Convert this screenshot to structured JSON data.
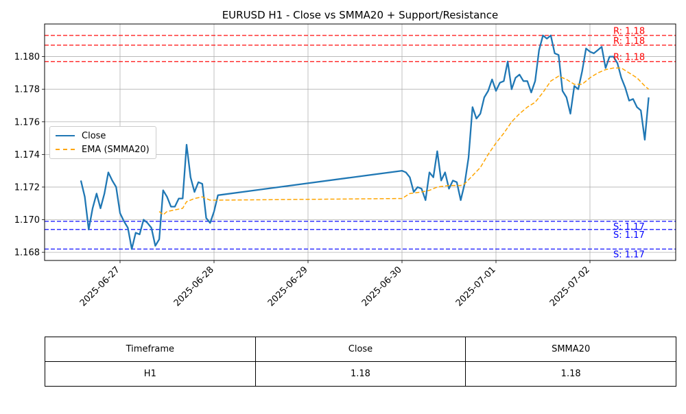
{
  "chart_data": {
    "type": "line",
    "title": "EURUSD H1 - Close vs SMMA20 + Support/Resistance",
    "xlabel": "",
    "ylabel": "",
    "x_ticks": [
      "2025-06-27",
      "2025-06-28",
      "2025-06-29",
      "2025-06-30",
      "2025-07-01",
      "2025-07-02"
    ],
    "y_ticks": [
      "1.168",
      "1.170",
      "1.172",
      "1.174",
      "1.176",
      "1.178",
      "1.180"
    ],
    "ylim": [
      1.1675,
      1.182
    ],
    "grid": true,
    "legend_position": "center-left",
    "series": [
      {
        "name": "Close",
        "color": "#1f77b4",
        "style": "solid",
        "points": [
          [
            "2025-06-26 14:00",
            1.1724
          ],
          [
            "2025-06-26 15:00",
            1.1714
          ],
          [
            "2025-06-26 16:00",
            1.1694
          ],
          [
            "2025-06-26 17:00",
            1.1707
          ],
          [
            "2025-06-26 18:00",
            1.1716
          ],
          [
            "2025-06-26 19:00",
            1.1707
          ],
          [
            "2025-06-26 20:00",
            1.1716
          ],
          [
            "2025-06-26 21:00",
            1.1729
          ],
          [
            "2025-06-26 22:00",
            1.1724
          ],
          [
            "2025-06-26 23:00",
            1.172
          ],
          [
            "2025-06-27 00:00",
            1.1704
          ],
          [
            "2025-06-27 01:00",
            1.1699
          ],
          [
            "2025-06-27 02:00",
            1.1695
          ],
          [
            "2025-06-27 03:00",
            1.1682
          ],
          [
            "2025-06-27 04:00",
            1.1692
          ],
          [
            "2025-06-27 05:00",
            1.1691
          ],
          [
            "2025-06-27 06:00",
            1.17
          ],
          [
            "2025-06-27 07:00",
            1.1698
          ],
          [
            "2025-06-27 08:00",
            1.1695
          ],
          [
            "2025-06-27 09:00",
            1.1684
          ],
          [
            "2025-06-27 10:00",
            1.1688
          ],
          [
            "2025-06-27 11:00",
            1.1718
          ],
          [
            "2025-06-27 12:00",
            1.1714
          ],
          [
            "2025-06-27 13:00",
            1.1708
          ],
          [
            "2025-06-27 14:00",
            1.1708
          ],
          [
            "2025-06-27 15:00",
            1.1713
          ],
          [
            "2025-06-27 16:00",
            1.1713
          ],
          [
            "2025-06-27 17:00",
            1.1746
          ],
          [
            "2025-06-27 18:00",
            1.1726
          ],
          [
            "2025-06-27 19:00",
            1.1717
          ],
          [
            "2025-06-27 20:00",
            1.1723
          ],
          [
            "2025-06-27 21:00",
            1.1722
          ],
          [
            "2025-06-27 22:00",
            1.1701
          ],
          [
            "2025-06-27 23:00",
            1.1698
          ],
          [
            "2025-06-28 00:00",
            1.1705
          ],
          [
            "2025-06-28 01:00",
            1.1715
          ],
          [
            "2025-06-30 00:00",
            1.173
          ],
          [
            "2025-06-30 01:00",
            1.1729
          ],
          [
            "2025-06-30 02:00",
            1.1726
          ],
          [
            "2025-06-30 03:00",
            1.1717
          ],
          [
            "2025-06-30 04:00",
            1.172
          ],
          [
            "2025-06-30 05:00",
            1.1719
          ],
          [
            "2025-06-30 06:00",
            1.1712
          ],
          [
            "2025-06-30 07:00",
            1.1729
          ],
          [
            "2025-06-30 08:00",
            1.1726
          ],
          [
            "2025-06-30 09:00",
            1.1742
          ],
          [
            "2025-06-30 10:00",
            1.1724
          ],
          [
            "2025-06-30 11:00",
            1.1729
          ],
          [
            "2025-06-30 12:00",
            1.1719
          ],
          [
            "2025-06-30 13:00",
            1.1724
          ],
          [
            "2025-06-30 14:00",
            1.1723
          ],
          [
            "2025-06-30 15:00",
            1.1712
          ],
          [
            "2025-06-30 16:00",
            1.1722
          ],
          [
            "2025-06-30 17:00",
            1.1738
          ],
          [
            "2025-06-30 18:00",
            1.1769
          ],
          [
            "2025-06-30 19:00",
            1.1762
          ],
          [
            "2025-06-30 20:00",
            1.1765
          ],
          [
            "2025-06-30 21:00",
            1.1775
          ],
          [
            "2025-06-30 22:00",
            1.1779
          ],
          [
            "2025-06-30 23:00",
            1.1786
          ],
          [
            "2025-07-01 00:00",
            1.1779
          ],
          [
            "2025-07-01 01:00",
            1.1784
          ],
          [
            "2025-07-01 02:00",
            1.1785
          ],
          [
            "2025-07-01 03:00",
            1.1797
          ],
          [
            "2025-07-01 04:00",
            1.178
          ],
          [
            "2025-07-01 05:00",
            1.1787
          ],
          [
            "2025-07-01 06:00",
            1.1789
          ],
          [
            "2025-07-01 07:00",
            1.1785
          ],
          [
            "2025-07-01 08:00",
            1.1785
          ],
          [
            "2025-07-01 09:00",
            1.1778
          ],
          [
            "2025-07-01 10:00",
            1.1785
          ],
          [
            "2025-07-01 11:00",
            1.1804
          ],
          [
            "2025-07-01 12:00",
            1.1813
          ],
          [
            "2025-07-01 13:00",
            1.1811
          ],
          [
            "2025-07-01 14:00",
            1.1813
          ],
          [
            "2025-07-01 15:00",
            1.1802
          ],
          [
            "2025-07-01 16:00",
            1.1801
          ],
          [
            "2025-07-01 17:00",
            1.1779
          ],
          [
            "2025-07-01 18:00",
            1.1775
          ],
          [
            "2025-07-01 19:00",
            1.1765
          ],
          [
            "2025-07-01 20:00",
            1.1782
          ],
          [
            "2025-07-01 21:00",
            1.178
          ],
          [
            "2025-07-01 22:00",
            1.1791
          ],
          [
            "2025-07-01 23:00",
            1.1805
          ],
          [
            "2025-07-02 00:00",
            1.1803
          ],
          [
            "2025-07-02 01:00",
            1.1802
          ],
          [
            "2025-07-02 02:00",
            1.1804
          ],
          [
            "2025-07-02 03:00",
            1.1806
          ],
          [
            "2025-07-02 04:00",
            1.1793
          ],
          [
            "2025-07-02 05:00",
            1.18
          ],
          [
            "2025-07-02 06:00",
            1.18
          ],
          [
            "2025-07-02 07:00",
            1.1796
          ],
          [
            "2025-07-02 08:00",
            1.1787
          ],
          [
            "2025-07-02 09:00",
            1.1781
          ],
          [
            "2025-07-02 10:00",
            1.1773
          ],
          [
            "2025-07-02 11:00",
            1.1774
          ],
          [
            "2025-07-02 12:00",
            1.1769
          ],
          [
            "2025-07-02 13:00",
            1.1767
          ],
          [
            "2025-07-02 14:00",
            1.1749
          ],
          [
            "2025-07-02 15:00",
            1.1775
          ]
        ]
      },
      {
        "name": "EMA (SMMA20)",
        "color": "#ffa500",
        "style": "dashed",
        "points": [
          [
            "2025-06-27 10:00",
            1.1705
          ],
          [
            "2025-06-27 11:00",
            1.1703
          ],
          [
            "2025-06-27 12:00",
            1.1705
          ],
          [
            "2025-06-27 14:00",
            1.1706
          ],
          [
            "2025-06-27 16:00",
            1.1707
          ],
          [
            "2025-06-27 17:00",
            1.1711
          ],
          [
            "2025-06-27 19:00",
            1.1713
          ],
          [
            "2025-06-27 21:00",
            1.1714
          ],
          [
            "2025-06-27 23:00",
            1.1712
          ],
          [
            "2025-06-28 00:00",
            1.1712
          ],
          [
            "2025-06-28 01:00",
            1.1712
          ],
          [
            "2025-06-30 00:00",
            1.1713
          ],
          [
            "2025-06-30 02:00",
            1.1716
          ],
          [
            "2025-06-30 05:00",
            1.1717
          ],
          [
            "2025-06-30 07:00",
            1.1718
          ],
          [
            "2025-06-30 09:00",
            1.172
          ],
          [
            "2025-06-30 12:00",
            1.1721
          ],
          [
            "2025-06-30 15:00",
            1.1721
          ],
          [
            "2025-06-30 16:00",
            1.1722
          ],
          [
            "2025-06-30 18:00",
            1.1727
          ],
          [
            "2025-06-30 20:00",
            1.1732
          ],
          [
            "2025-06-30 22:00",
            1.174
          ],
          [
            "2025-07-01 00:00",
            1.1747
          ],
          [
            "2025-07-01 02:00",
            1.1753
          ],
          [
            "2025-07-01 04:00",
            1.176
          ],
          [
            "2025-07-01 06:00",
            1.1765
          ],
          [
            "2025-07-01 08:00",
            1.1769
          ],
          [
            "2025-07-01 10:00",
            1.1772
          ],
          [
            "2025-07-01 12:00",
            1.1778
          ],
          [
            "2025-07-01 14:00",
            1.1785
          ],
          [
            "2025-07-01 16:00",
            1.1788
          ],
          [
            "2025-07-01 18:00",
            1.1786
          ],
          [
            "2025-07-01 20:00",
            1.1783
          ],
          [
            "2025-07-01 22:00",
            1.1783
          ],
          [
            "2025-07-02 00:00",
            1.1787
          ],
          [
            "2025-07-02 02:00",
            1.179
          ],
          [
            "2025-07-02 04:00",
            1.1792
          ],
          [
            "2025-07-02 06:00",
            1.1793
          ],
          [
            "2025-07-02 08:00",
            1.1793
          ],
          [
            "2025-07-02 10:00",
            1.179
          ],
          [
            "2025-07-02 12:00",
            1.1787
          ],
          [
            "2025-07-02 14:00",
            1.1782
          ],
          [
            "2025-07-02 15:00",
            1.178
          ]
        ]
      }
    ],
    "resistance_levels": [
      {
        "label": "R: 1.18",
        "value": 1.1813,
        "color": "#ff0000"
      },
      {
        "label": "R: 1.18",
        "value": 1.1807,
        "color": "#ff0000"
      },
      {
        "label": "R: 1.18",
        "value": 1.1797,
        "color": "#ff0000"
      }
    ],
    "support_levels": [
      {
        "label": "S: 1.17",
        "value": 1.1699,
        "color": "#0000ff"
      },
      {
        "label": "S: 1.17",
        "value": 1.1694,
        "color": "#0000ff"
      },
      {
        "label": "S: 1.17",
        "value": 1.1682,
        "color": "#0000ff"
      }
    ]
  },
  "table": {
    "headers": [
      "Timeframe",
      "Close",
      "SMMA20"
    ],
    "rows": [
      [
        "H1",
        "1.18",
        "1.18"
      ]
    ]
  }
}
